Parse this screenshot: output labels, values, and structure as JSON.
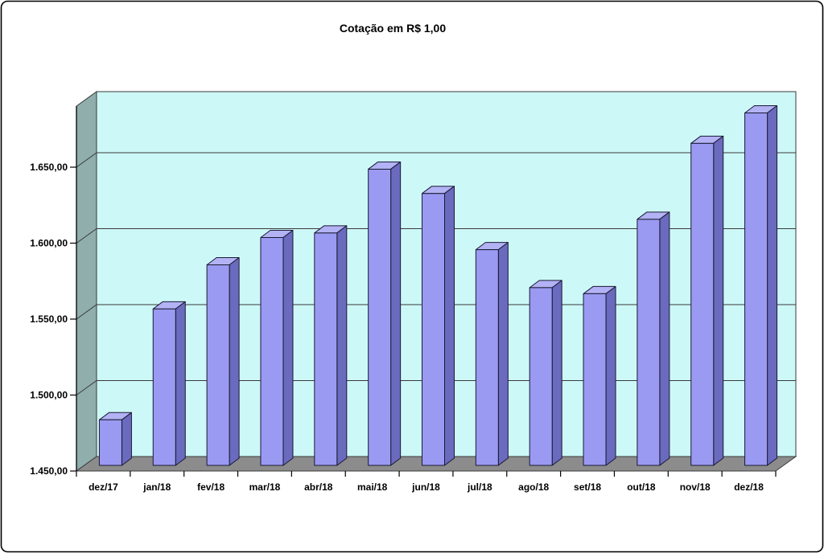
{
  "window": {
    "background": "#FFFFFF",
    "border_color": "#000000"
  },
  "chart_data": {
    "type": "bar",
    "style": "3d-column",
    "title": "Cotação em R$ 1,00",
    "categories": [
      "dez/17",
      "jan/18",
      "fev/18",
      "mar/18",
      "abr/18",
      "mai/18",
      "jun/18",
      "jul/18",
      "ago/18",
      "set/18",
      "out/18",
      "nov/18",
      "dez/18"
    ],
    "values": [
      1480,
      1553,
      1582,
      1600,
      1603,
      1645,
      1629,
      1592,
      1567,
      1563,
      1612,
      1662,
      1682
    ],
    "xlabel": "",
    "ylabel": "",
    "ylim": [
      1450,
      1691
    ],
    "y_major_unit": 50,
    "y_tick_values": [
      1450,
      1500,
      1550,
      1600,
      1650
    ],
    "y_tick_labels": [
      "1.450,00",
      "1.500,00",
      "1.550,00",
      "1.600,00",
      "1.650,00"
    ],
    "grid": true,
    "legend": "none",
    "colors": {
      "bar_front": "#9A9AF2",
      "bar_side": "#6A6ABE",
      "bar_top": "#B2B2F5",
      "bar_outline": "#1A1A33",
      "wall_back": "#CDF8F8",
      "wall_side": "#8FAEAC",
      "floor": "#8C8C8C",
      "gridline": "#3A3A3A",
      "axis": "#000000"
    }
  }
}
